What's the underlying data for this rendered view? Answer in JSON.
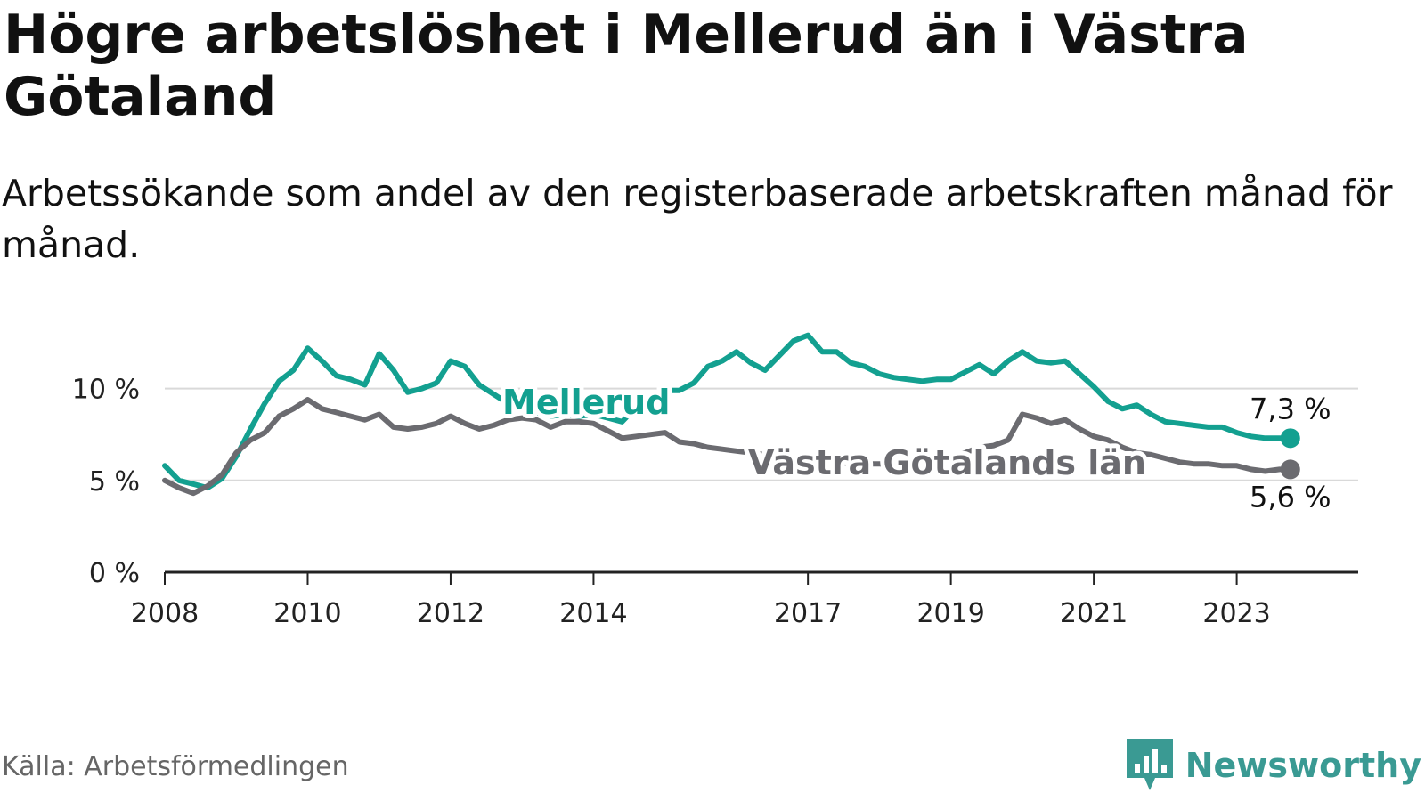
{
  "title": "Högre arbetslöshet i Mellerud än i Västra Götaland",
  "subtitle": "Arbetssökande som andel av den registerbaserade arbetskraften månad för månad.",
  "source": "Källa: Arbetsförmedlingen",
  "brand": "Newsworthy",
  "colors": {
    "mellerud": "#13a090",
    "vgl": "#6b6b70",
    "grid": "#d9d9d9",
    "axis": "#222222",
    "brand": "#3a9a93"
  },
  "chart_data": {
    "type": "line",
    "title": "Högre arbetslöshet i Mellerud än i Västra Götaland",
    "xlabel": "",
    "ylabel": "",
    "xlim": [
      2008,
      2024.7
    ],
    "ylim": [
      0,
      12.5
    ],
    "y_ticks": [
      0,
      5,
      10
    ],
    "y_tick_labels": [
      "0 %",
      "5 %",
      "10 %"
    ],
    "x_ticks": [
      2008,
      2010,
      2012,
      2014,
      2017,
      2019,
      2021,
      2023
    ],
    "x_tick_labels": [
      "2008",
      "2010",
      "2012",
      "2014",
      "2017",
      "2019",
      "2021",
      "2023"
    ],
    "grid": true,
    "series": [
      {
        "name": "Mellerud",
        "label": "Mellerud",
        "end_label": "7,3 %",
        "x": [
          2008.0,
          2008.2,
          2008.4,
          2008.6,
          2008.8,
          2009.0,
          2009.2,
          2009.4,
          2009.6,
          2009.8,
          2010.0,
          2010.2,
          2010.4,
          2010.6,
          2010.8,
          2011.0,
          2011.2,
          2011.4,
          2011.6,
          2011.8,
          2012.0,
          2012.2,
          2012.4,
          2012.6,
          2012.8,
          2013.0,
          2013.2,
          2013.4,
          2013.6,
          2013.8,
          2014.0,
          2014.2,
          2014.4,
          2014.6,
          2014.8,
          2015.0,
          2015.2,
          2015.4,
          2015.6,
          2015.8,
          2016.0,
          2016.2,
          2016.4,
          2016.6,
          2016.8,
          2017.0,
          2017.2,
          2017.4,
          2017.6,
          2017.8,
          2018.0,
          2018.2,
          2018.4,
          2018.6,
          2018.8,
          2019.0,
          2019.2,
          2019.4,
          2019.6,
          2019.8,
          2020.0,
          2020.2,
          2020.4,
          2020.6,
          2020.8,
          2021.0,
          2021.2,
          2021.4,
          2021.6,
          2021.8,
          2022.0,
          2022.2,
          2022.4,
          2022.6,
          2022.8,
          2023.0,
          2023.2,
          2023.4,
          2023.6,
          2023.75
        ],
        "values": [
          5.8,
          5.0,
          4.8,
          4.6,
          5.1,
          6.3,
          7.8,
          9.2,
          10.4,
          11.0,
          12.2,
          11.5,
          10.7,
          10.5,
          10.2,
          11.9,
          11.0,
          9.8,
          10.0,
          10.3,
          11.5,
          11.2,
          10.2,
          9.7,
          9.2,
          8.9,
          8.7,
          8.5,
          8.6,
          8.5,
          8.6,
          8.4,
          8.2,
          9.0,
          9.6,
          9.9,
          9.9,
          10.3,
          11.2,
          11.5,
          12.0,
          11.4,
          11.0,
          11.8,
          12.6,
          12.9,
          12.0,
          12.0,
          11.4,
          11.2,
          10.8,
          10.6,
          10.5,
          10.4,
          10.5,
          10.5,
          10.9,
          11.3,
          10.8,
          11.5,
          12.0,
          11.5,
          11.4,
          11.5,
          10.8,
          10.1,
          9.3,
          8.9,
          9.1,
          8.6,
          8.2,
          8.1,
          8.0,
          7.9,
          7.9,
          7.6,
          7.4,
          7.3,
          7.3,
          7.3
        ]
      },
      {
        "name": "Västra Götalands län",
        "label": "Västra Götalands län",
        "end_label": "5,6 %",
        "x": [
          2008.0,
          2008.2,
          2008.4,
          2008.6,
          2008.8,
          2009.0,
          2009.2,
          2009.4,
          2009.6,
          2009.8,
          2010.0,
          2010.2,
          2010.4,
          2010.6,
          2010.8,
          2011.0,
          2011.2,
          2011.4,
          2011.6,
          2011.8,
          2012.0,
          2012.2,
          2012.4,
          2012.6,
          2012.8,
          2013.0,
          2013.2,
          2013.4,
          2013.6,
          2013.8,
          2014.0,
          2014.2,
          2014.4,
          2014.6,
          2014.8,
          2015.0,
          2015.2,
          2015.4,
          2015.6,
          2015.8,
          2016.0,
          2016.2,
          2016.4,
          2016.6,
          2016.8,
          2017.0,
          2017.2,
          2017.4,
          2017.6,
          2017.8,
          2018.0,
          2018.2,
          2018.4,
          2018.6,
          2018.8,
          2019.0,
          2019.2,
          2019.4,
          2019.6,
          2019.8,
          2020.0,
          2020.2,
          2020.4,
          2020.6,
          2020.8,
          2021.0,
          2021.2,
          2021.4,
          2021.6,
          2021.8,
          2022.0,
          2022.2,
          2022.4,
          2022.6,
          2022.8,
          2023.0,
          2023.2,
          2023.4,
          2023.6,
          2023.75
        ],
        "values": [
          5.0,
          4.6,
          4.3,
          4.7,
          5.3,
          6.5,
          7.2,
          7.6,
          8.5,
          8.9,
          9.4,
          8.9,
          8.7,
          8.5,
          8.3,
          8.6,
          7.9,
          7.8,
          7.9,
          8.1,
          8.5,
          8.1,
          7.8,
          8.0,
          8.3,
          8.4,
          8.3,
          7.9,
          8.2,
          8.2,
          8.1,
          7.7,
          7.3,
          7.4,
          7.5,
          7.6,
          7.1,
          7.0,
          6.8,
          6.7,
          6.6,
          6.5,
          6.4,
          6.3,
          6.2,
          6.2,
          6.1,
          6.0,
          5.9,
          5.9,
          5.9,
          5.8,
          5.8,
          5.9,
          6.1,
          6.3,
          6.5,
          6.8,
          6.9,
          7.2,
          8.6,
          8.4,
          8.1,
          8.3,
          7.8,
          7.4,
          7.2,
          6.8,
          6.5,
          6.4,
          6.2,
          6.0,
          5.9,
          5.9,
          5.8,
          5.8,
          5.6,
          5.5,
          5.6,
          5.6
        ]
      }
    ]
  }
}
